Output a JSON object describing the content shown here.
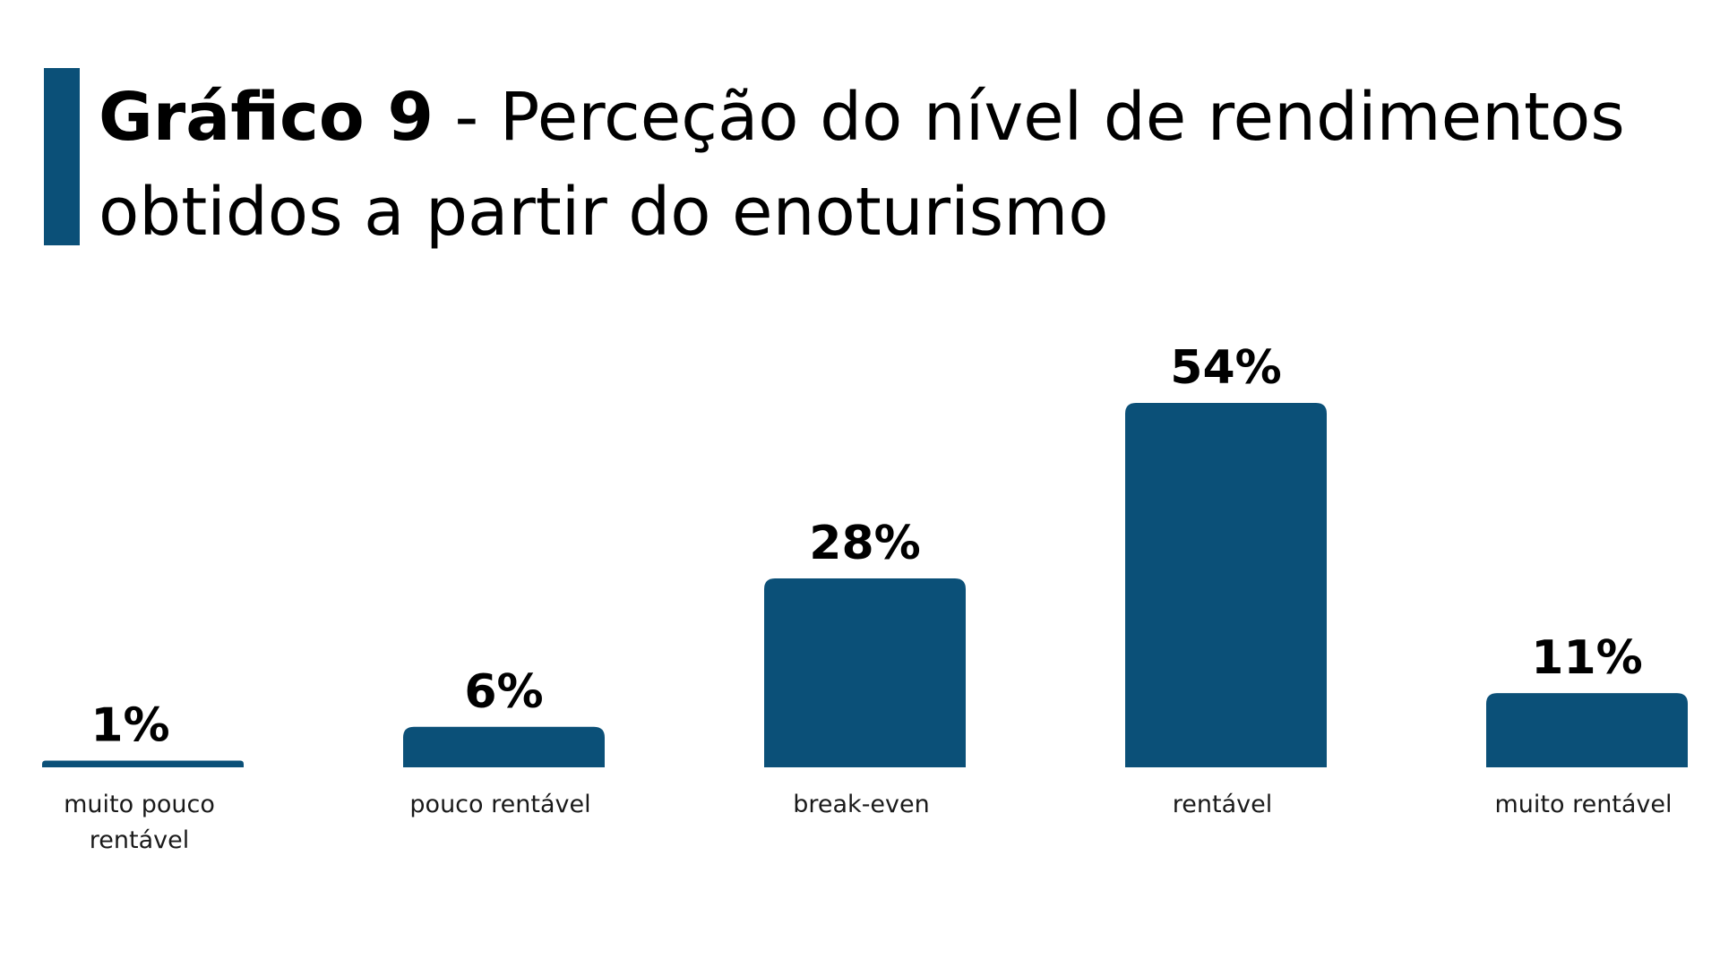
{
  "title": {
    "bold": "Gráfico 9",
    "rest": " - Perceção do nível de rendimentos obtidos a partir do enoturismo"
  },
  "colors": {
    "bar": "#0b5078",
    "accent": "#0b5078",
    "text": "#000000",
    "background": "#ffffff"
  },
  "chart_data": {
    "type": "bar",
    "title": "Gráfico 9 - Perceção do nível de rendimentos obtidos a partir do enoturismo",
    "categories": [
      [
        "muito pouco",
        "rentável"
      ],
      [
        "pouco rentável"
      ],
      [
        "break-even"
      ],
      [
        "rentável"
      ],
      [
        "muito rentável"
      ]
    ],
    "values": [
      1,
      6,
      28,
      54,
      11
    ],
    "value_labels": [
      "1%",
      "6%",
      "28%",
      "54%",
      "11%"
    ],
    "unit": "%",
    "ylim": [
      0,
      54
    ],
    "grid": false,
    "legend": "none"
  }
}
